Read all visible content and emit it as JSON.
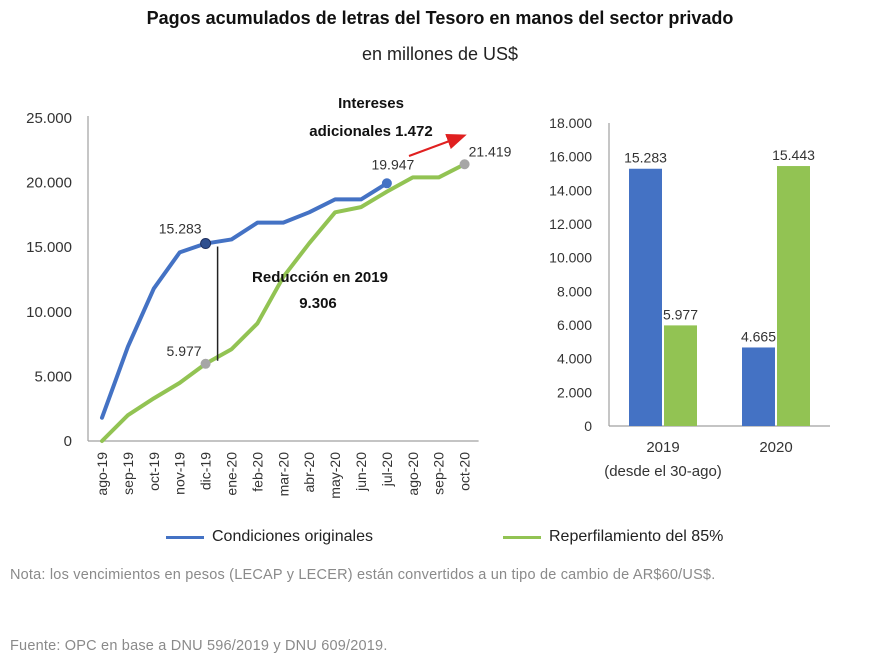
{
  "header": {
    "title": "Pagos acumulados de letras del Tesoro en manos del sector privado",
    "subtitle": "en millones de US$"
  },
  "colors": {
    "blue": "#4472C4",
    "green": "#92C353",
    "gray_marker": "#A6A6A6",
    "red_arrow": "#E02020",
    "axis": "#7f7f7f",
    "note_text": "#8a8a8a"
  },
  "chart_data": [
    {
      "type": "line",
      "x": [
        "ago-19",
        "sep-19",
        "oct-19",
        "nov-19",
        "dic-19",
        "ene-20",
        "feb-20",
        "mar-20",
        "abr-20",
        "may-20",
        "jun-20",
        "jul-20",
        "ago-20",
        "sep-20",
        "oct-20"
      ],
      "ylim": [
        0,
        25000
      ],
      "yticks": [
        "0",
        "5.000",
        "10.000",
        "15.000",
        "20.000",
        "25.000"
      ],
      "ytick_values": [
        0,
        5000,
        10000,
        15000,
        20000,
        25000
      ],
      "series": [
        {
          "name": "Condiciones originales",
          "color": "#4472C4",
          "values": [
            1800,
            7300,
            11800,
            14600,
            15283,
            15600,
            16900,
            16900,
            17700,
            18700,
            18700,
            19947,
            null,
            null,
            null
          ]
        },
        {
          "name": "Reperfilamiento del 85%",
          "color": "#92C353",
          "values": [
            0,
            2000,
            3300,
            4500,
            5977,
            7100,
            9100,
            12700,
            15300,
            17700,
            18100,
            19300,
            20400,
            20400,
            21419
          ]
        }
      ],
      "point_labels": [
        {
          "text": "15.283",
          "series": 0,
          "index": 4
        },
        {
          "text": "5.977",
          "series": 1,
          "index": 4
        },
        {
          "text": "19.947",
          "series": 0,
          "index": 11
        },
        {
          "text": "21.419",
          "series": 1,
          "index": 14
        }
      ],
      "annotations": {
        "reduction_line1": "Reducción en 2019",
        "reduction_line2": "9.306",
        "interest_line1": "Intereses",
        "interest_line2": "adicionales 1.472"
      }
    },
    {
      "type": "bar",
      "categories": [
        "2019",
        "2020"
      ],
      "category_sublabels": [
        "(desde el 30-ago)",
        ""
      ],
      "ylim": [
        0,
        18000
      ],
      "yticks": [
        "0",
        "2.000",
        "4.000",
        "6.000",
        "8.000",
        "10.000",
        "12.000",
        "14.000",
        "16.000",
        "18.000"
      ],
      "ytick_values": [
        0,
        2000,
        4000,
        6000,
        8000,
        10000,
        12000,
        14000,
        16000,
        18000
      ],
      "series": [
        {
          "name": "Condiciones originales",
          "color": "#4472C4",
          "values": [
            15283,
            4665
          ],
          "labels": [
            "15.283",
            "4.665"
          ]
        },
        {
          "name": "Reperfilamiento del 85%",
          "color": "#92C353",
          "values": [
            5977,
            15443
          ],
          "labels": [
            "5.977",
            "15.443"
          ]
        }
      ]
    }
  ],
  "legend": {
    "item1": "Condiciones originales",
    "item2": "Reperfilamiento del 85%"
  },
  "footer": {
    "note": "Nota: los vencimientos en pesos (LECAP y LECER) están convertidos a un tipo de cambio de AR$60/US$.",
    "source": "Fuente: OPC en base a DNU 596/2019 y DNU 609/2019."
  }
}
